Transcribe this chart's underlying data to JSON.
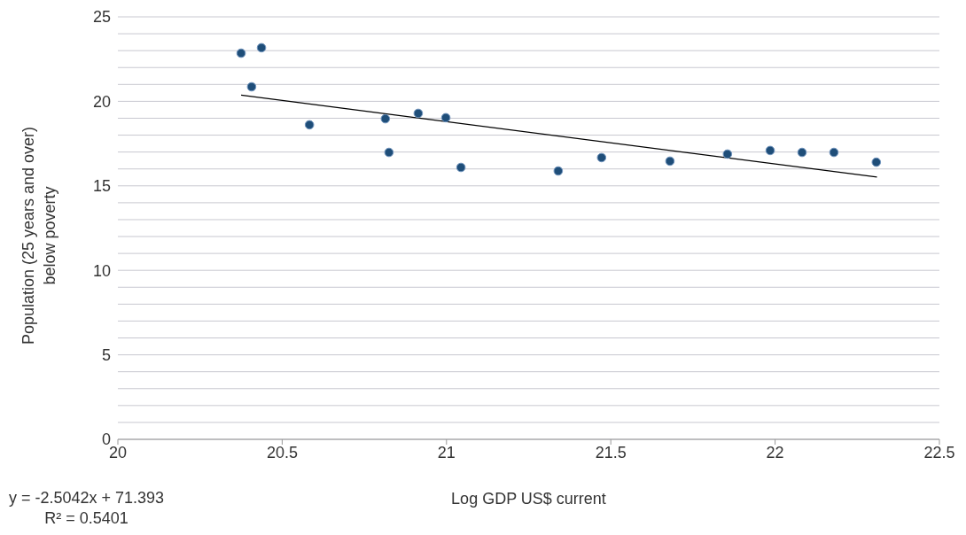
{
  "chart_data": {
    "type": "scatter",
    "xlabel": "Log GDP US$ current",
    "ylabel": "Population (25 years and over) below poverty",
    "annotations": [
      "y = -2.5042x + 71.393",
      "R² = 0.5401"
    ],
    "series": [
      {
        "marker": "circle",
        "color": "#1f4e79",
        "x": [
          20.375,
          20.407,
          20.437,
          20.583,
          20.814,
          20.825,
          20.914,
          20.998,
          21.044,
          21.34,
          21.472,
          21.68,
          21.855,
          21.985,
          22.082,
          22.179,
          22.308
        ],
        "values": [
          22.85,
          20.86,
          23.17,
          18.61,
          18.97,
          16.98,
          19.29,
          19.03,
          16.09,
          15.88,
          16.67,
          16.46,
          16.88,
          17.09,
          16.98,
          16.98,
          16.4
        ]
      },
      {
        "type": "line",
        "color": "#000000",
        "x": [
          20.375,
          22.31
        ],
        "values": [
          20.37,
          15.52
        ]
      }
    ],
    "xlim": [
      20,
      22.5
    ],
    "xticks": [
      20,
      20.5,
      21,
      21.5,
      22,
      22.5
    ],
    "ylim": [
      0,
      25
    ],
    "yticks": [
      0,
      {
        "value": 1,
        "label": null
      },
      {
        "value": 2,
        "label": null
      },
      {
        "value": 3,
        "label": null
      },
      {
        "value": 4,
        "label": null
      },
      5,
      {
        "value": 6,
        "label": null
      },
      {
        "value": 7,
        "label": null
      },
      {
        "value": 8,
        "label": null
      },
      {
        "value": 9,
        "label": null
      },
      10,
      {
        "value": 11,
        "label": null
      },
      {
        "value": 12,
        "label": null
      },
      {
        "value": 13,
        "label": null
      },
      {
        "value": 14,
        "label": null
      },
      15,
      {
        "value": 16,
        "label": null
      },
      {
        "value": 17,
        "label": null
      },
      {
        "value": 18,
        "label": null
      },
      {
        "value": 19,
        "label": null
      },
      20,
      {
        "value": 21,
        "label": null
      },
      {
        "value": 22,
        "label": null
      },
      {
        "value": 23,
        "label": null
      },
      {
        "value": 24,
        "label": null
      },
      25
    ],
    "grid": "y",
    "legend": false
  }
}
